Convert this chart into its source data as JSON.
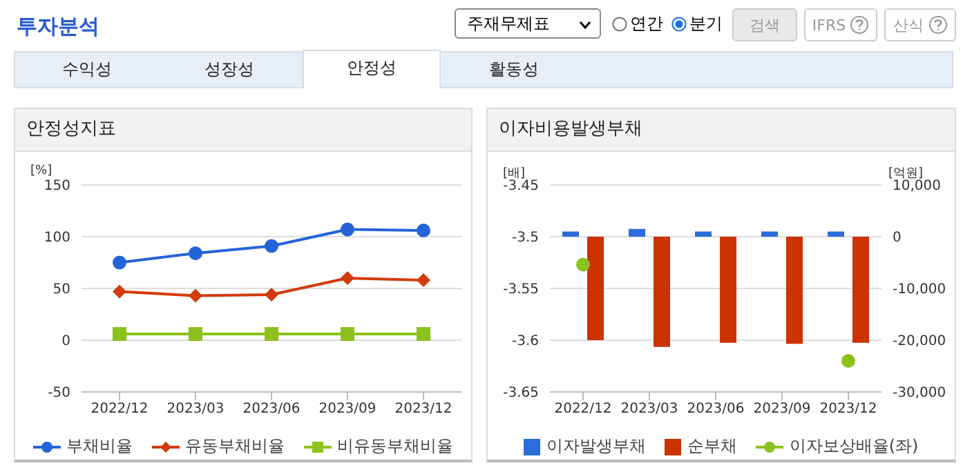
{
  "chart_data": [
    {
      "type": "line",
      "title": "안정성지표",
      "ylabel": "[%]",
      "categories": [
        "2022/12",
        "2023/03",
        "2023/06",
        "2023/09",
        "2023/12"
      ],
      "series": [
        {
          "name": "부채비율",
          "color": "#2563d9",
          "marker": "circle",
          "values": [
            75,
            84,
            91,
            107,
            106
          ]
        },
        {
          "name": "유동부채비율",
          "color": "#d33a0c",
          "marker": "diamond",
          "values": [
            47,
            43,
            44,
            60,
            58
          ]
        },
        {
          "name": "비유동부채비율",
          "color": "#8cc21c",
          "marker": "square",
          "values": [
            6,
            6,
            6,
            6,
            6
          ]
        }
      ],
      "ylim": [
        -50,
        150
      ],
      "yticks": [
        -50,
        0,
        50,
        100,
        150
      ],
      "grid": "y",
      "legend": "bottom",
      "annotations": [
        "투자분석",
        "주재무제표",
        "연간",
        "분기",
        "검색",
        "IFRS",
        "산식",
        "수익성",
        "성장성",
        "안정성",
        "활동성"
      ]
    },
    {
      "type": "bar",
      "title": "이자비용발생부채",
      "ylabel": "[배]",
      "y2label": "[억원]",
      "categories": [
        "2022/12",
        "2023/03",
        "2023/06",
        "2023/09",
        "2023/12"
      ],
      "series": [
        {
          "name": "이자발생부채",
          "type": "bar",
          "axis": "y2",
          "color": "#2a6ddb",
          "values": [
            1000,
            1500,
            1000,
            1000,
            1000
          ]
        },
        {
          "name": "순부채",
          "type": "bar",
          "axis": "y2",
          "color": "#cc3300",
          "values": [
            -20000,
            -21300,
            -20500,
            -20700,
            -20500
          ]
        },
        {
          "name": "이자보상배율(좌)",
          "type": "scatter",
          "color": "#8cc21c",
          "values": [
            -3.527,
            null,
            null,
            null,
            -3.62
          ]
        }
      ],
      "ylim": [
        -3.65,
        -3.45
      ],
      "yticks": [
        -3.65,
        -3.6,
        -3.55,
        -3.5,
        -3.45
      ],
      "y2lim": [
        -30000,
        10000
      ],
      "y2ticks": [
        {
          "value": -30000,
          "label": "-30,000"
        },
        {
          "value": -20000,
          "label": "-20,000"
        },
        {
          "value": -10000,
          "label": "-10,000"
        },
        0,
        {
          "value": 10000,
          "label": "10,000"
        }
      ],
      "grid": "y",
      "legend": "bottom"
    }
  ]
}
